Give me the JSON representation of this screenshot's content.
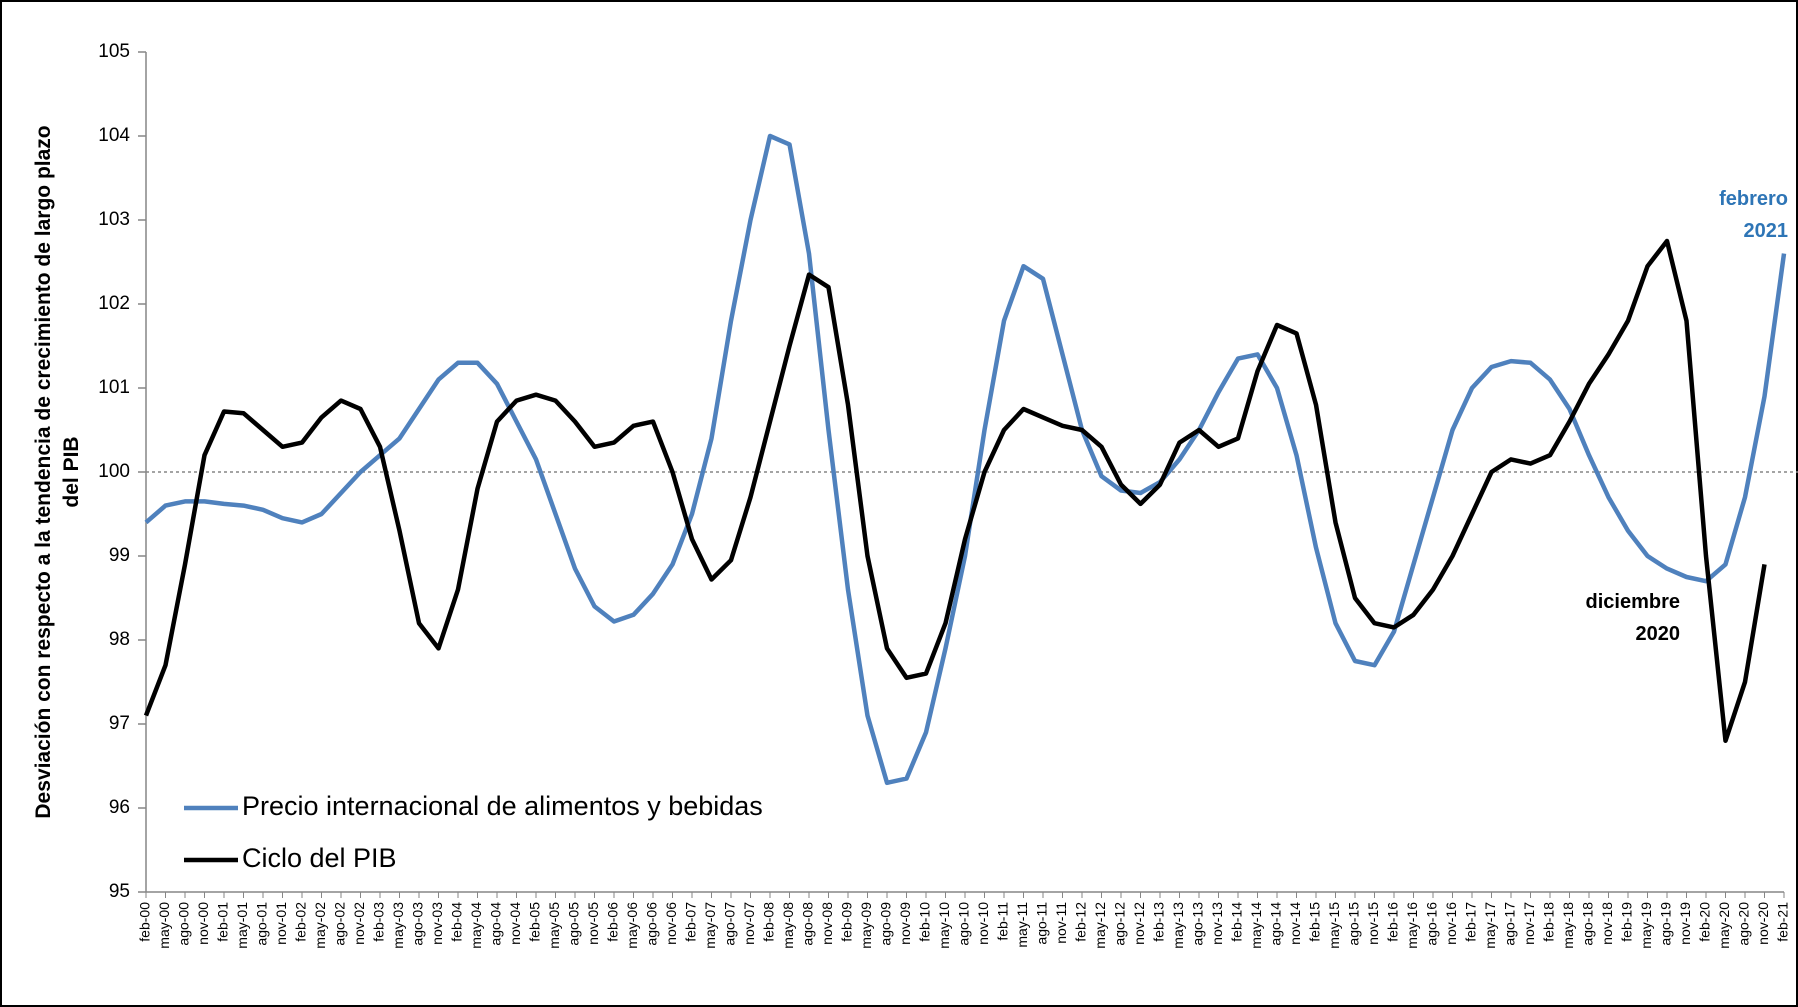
{
  "chart_data": {
    "type": "line",
    "ylabel": [
      "Desviación con respecto a la tendencia de crecimiento de largo plazo",
      "del PIB"
    ],
    "categories": [
      "feb-00",
      "may-00",
      "ago-00",
      "nov-00",
      "feb-01",
      "may-01",
      "ago-01",
      "nov-01",
      "feb-02",
      "may-02",
      "ago-02",
      "nov-02",
      "feb-03",
      "may-03",
      "ago-03",
      "nov-03",
      "feb-04",
      "may-04",
      "ago-04",
      "nov-04",
      "feb-05",
      "may-05",
      "ago-05",
      "nov-05",
      "feb-06",
      "may-06",
      "ago-06",
      "nov-06",
      "feb-07",
      "may-07",
      "ago-07",
      "nov-07",
      "feb-08",
      "may-08",
      "ago-08",
      "nov-08",
      "feb-09",
      "may-09",
      "ago-09",
      "nov-09",
      "feb-10",
      "may-10",
      "ago-10",
      "nov-10",
      "feb-11",
      "may-11",
      "ago-11",
      "nov-11",
      "feb-12",
      "may-12",
      "ago-12",
      "nov-12",
      "feb-13",
      "may-13",
      "ago-13",
      "nov-13",
      "feb-14",
      "may-14",
      "ago-14",
      "nov-14",
      "feb-15",
      "may-15",
      "ago-15",
      "nov-15",
      "feb-16",
      "may-16",
      "ago-16",
      "nov-16",
      "feb-17",
      "may-17",
      "ago-17",
      "nov-17",
      "feb-18",
      "may-18",
      "ago-18",
      "nov-18",
      "feb-19",
      "may-19",
      "ago-19",
      "nov-19",
      "feb-20",
      "may-20",
      "ago-20",
      "nov-20",
      "feb-21"
    ],
    "series": [
      {
        "name": "Precio internacional de alimentos y bebidas",
        "color": "#4f81bd",
        "values": [
          99.4,
          99.6,
          99.65,
          99.65,
          99.62,
          99.6,
          99.55,
          99.45,
          99.4,
          99.5,
          99.75,
          100.0,
          100.2,
          100.4,
          100.75,
          101.1,
          101.3,
          101.3,
          101.05,
          100.6,
          100.15,
          99.5,
          98.85,
          98.4,
          98.22,
          98.3,
          98.55,
          98.9,
          99.5,
          100.4,
          101.8,
          103.0,
          104.0,
          103.9,
          102.6,
          100.5,
          98.6,
          97.1,
          96.3,
          96.35,
          96.9,
          97.9,
          99.0,
          100.5,
          101.8,
          102.45,
          102.3,
          101.4,
          100.5,
          99.95,
          99.78,
          99.75,
          99.88,
          100.15,
          100.5,
          100.95,
          101.35,
          101.4,
          101.0,
          100.2,
          99.1,
          98.2,
          97.75,
          97.7,
          98.1,
          98.9,
          99.7,
          100.5,
          101.0,
          101.25,
          101.32,
          101.3,
          101.1,
          100.75,
          100.2,
          99.7,
          99.3,
          99.0,
          98.85,
          98.75,
          98.7,
          98.9,
          99.7,
          100.9,
          102.6
        ]
      },
      {
        "name": "Ciclo del PIB",
        "color": "#000000",
        "values": [
          97.1,
          97.7,
          98.9,
          100.2,
          100.72,
          100.7,
          100.5,
          100.3,
          100.35,
          100.65,
          100.85,
          100.75,
          100.3,
          99.3,
          98.2,
          97.9,
          98.6,
          99.8,
          100.6,
          100.85,
          100.92,
          100.85,
          100.6,
          100.3,
          100.35,
          100.55,
          100.6,
          100.0,
          99.2,
          98.72,
          98.95,
          99.7,
          100.6,
          101.5,
          102.35,
          102.2,
          100.8,
          99.0,
          97.9,
          97.55,
          97.6,
          98.2,
          99.2,
          100.0,
          100.5,
          100.75,
          100.65,
          100.55,
          100.5,
          100.3,
          99.85,
          99.62,
          99.85,
          100.35,
          100.5,
          100.3,
          100.4,
          101.2,
          101.75,
          101.65,
          100.8,
          99.4,
          98.5,
          98.2,
          98.15,
          98.3,
          98.6,
          99.0,
          99.5,
          100.0,
          100.15,
          100.1,
          100.2,
          100.6,
          101.05,
          101.4,
          101.8,
          102.45,
          102.75,
          101.8,
          99.0,
          96.8,
          97.5,
          98.9,
          null
        ]
      }
    ],
    "ylim": [
      95,
      105
    ],
    "yticks": [
      95,
      96,
      97,
      98,
      99,
      100,
      101,
      102,
      103,
      104,
      105
    ],
    "reference_line": 100,
    "annotations": [
      {
        "text": [
          "febrero",
          "2021"
        ],
        "color": "#2e75b6"
      },
      {
        "text": [
          "diciembre",
          "2020"
        ],
        "color": "#000000"
      }
    ]
  }
}
